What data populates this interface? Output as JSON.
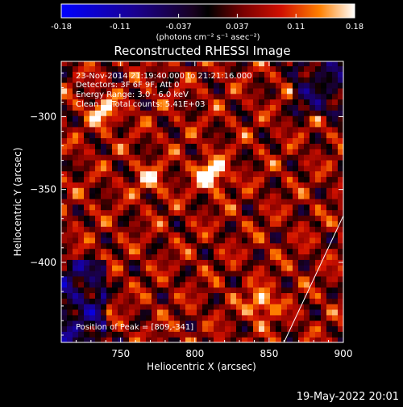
{
  "chart_data": {
    "type": "heatmap",
    "title": "Reconstructed RHESSI Image",
    "xlabel": "Heliocentric X (arcsec)",
    "ylabel": "Heliocentric Y (arcsec)",
    "xlim": [
      710,
      900
    ],
    "ylim": [
      -455,
      -262
    ],
    "x_ticks": [
      750,
      800,
      850,
      900
    ],
    "y_ticks": [
      -300,
      -350,
      -400
    ],
    "colorbar": {
      "label": "(photons cm⁻² s⁻¹ asec⁻²)",
      "min": -0.18,
      "max": 0.18,
      "ticks": [
        "-0.18",
        "-0.11",
        "-0.037",
        "0.037",
        "0.11",
        "0.18"
      ],
      "colormap": "red-temperature with blue negatives"
    },
    "annotations": [
      "23-Nov-2014 21:19:40.000 to 21:21:16.000",
      "Detectors: 3F 6F 9F, Att 0",
      "Energy Range: 3.0 - 6.0 keV",
      "Clean     Total counts: 5.41E+03"
    ],
    "peak_label": "Position of Peak = [809,-341]",
    "peak": [
      809,
      -341
    ],
    "bright_sources": [
      {
        "x": 809,
        "y": -341,
        "value": 0.18
      },
      {
        "x": 737,
        "y": -298,
        "value": 0.12
      },
      {
        "x": 843,
        "y": -430,
        "value": 0.13
      },
      {
        "x": 768,
        "y": -345,
        "value": 0.09
      }
    ],
    "limb_line": {
      "x1": 860,
      "y1": -455,
      "x2": 900,
      "y2": -368
    }
  },
  "footer": {
    "date": "19-May-2022 20:01"
  },
  "colors": {
    "background": "#000000",
    "text": "#ffffff"
  }
}
